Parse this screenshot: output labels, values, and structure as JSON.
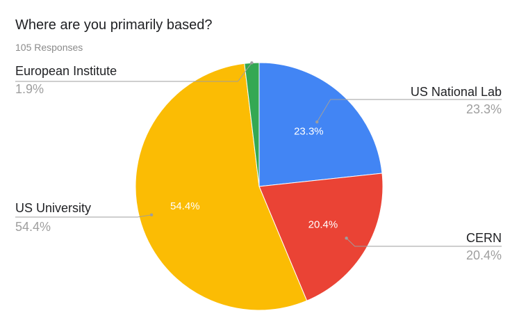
{
  "chart_data": {
    "type": "pie",
    "title": "Where are you primarily based?",
    "subtitle": "105 Responses",
    "slices": [
      {
        "name": "US National Lab",
        "value": 23.3,
        "label": "23.3%",
        "color": "#4285F4"
      },
      {
        "name": "CERN",
        "value": 20.4,
        "label": "20.4%",
        "color": "#EA4335"
      },
      {
        "name": "US University",
        "value": 54.4,
        "label": "54.4%",
        "color": "#FBBC04"
      },
      {
        "name": "European Institute",
        "value": 1.9,
        "label": "1.9%",
        "color": "#34A853"
      }
    ],
    "start_angle": "12 o'clock",
    "direction": "clockwise"
  }
}
